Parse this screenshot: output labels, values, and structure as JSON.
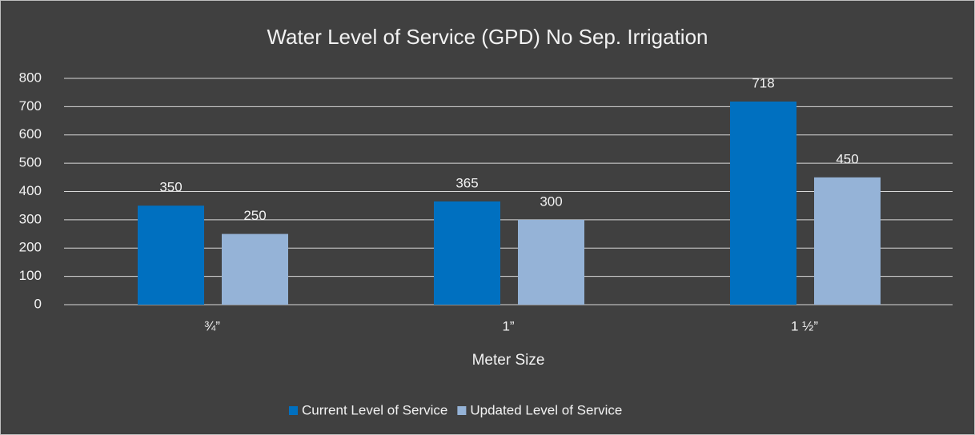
{
  "chart_data": {
    "type": "bar",
    "title": "Water Level of Service (GPD) No Sep. Irrigation",
    "x_label": "Meter Size",
    "categories": [
      "¾”",
      "1”",
      "1 ½”"
    ],
    "series": [
      {
        "name": "Current Level of Service",
        "color": "#0070c0",
        "values": [
          350,
          365,
          718
        ]
      },
      {
        "name": "Updated Level of Service",
        "color": "#95b3d7",
        "values": [
          250,
          300,
          450
        ]
      }
    ],
    "ylim": [
      0,
      800
    ],
    "yticks": [
      0,
      100,
      200,
      300,
      400,
      500,
      600,
      700,
      800
    ],
    "grid": true,
    "legend": "bottom"
  }
}
